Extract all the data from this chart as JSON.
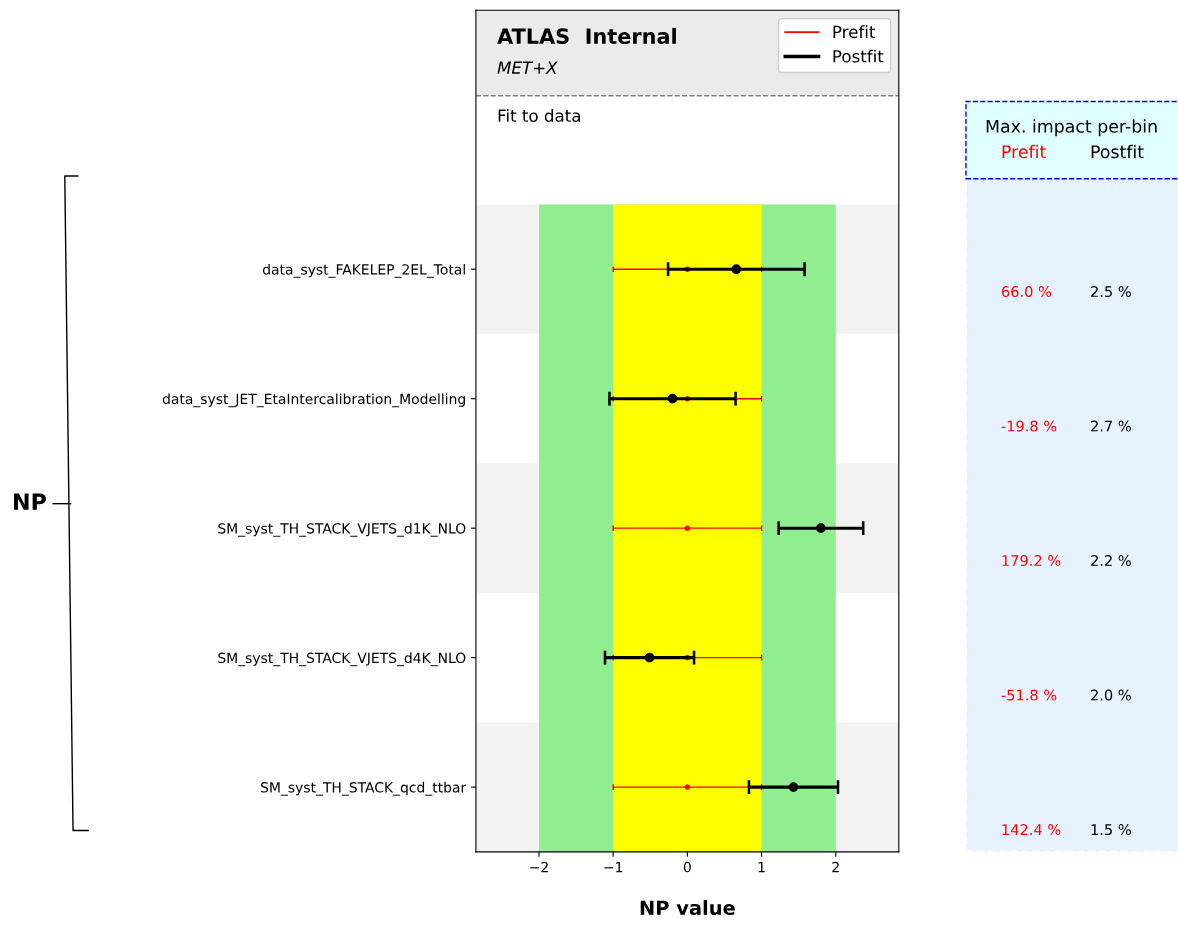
{
  "chart_data": [
    {
      "type": "scatter",
      "orientation": "horizontal",
      "title": "ATLAS  Internal",
      "subtitle": "MET+X",
      "annotations": [
        "Fit to data"
      ],
      "xlabel": "NP value",
      "ylabel": "NP",
      "categories": [
        "data_syst_FAKELEP_2EL_Total",
        "data_syst_JET_EtaIntercalibration_Modelling",
        "SM_syst_TH_STACK_VJETS_d1K_NLO",
        "SM_syst_TH_STACK_VJETS_d4K_NLO",
        "SM_syst_TH_STACK_qcd_ttbar"
      ],
      "xlim": [
        -2.85,
        2.85
      ],
      "xticks": [
        {
          "value": -2,
          "label": "−2"
        },
        {
          "value": -1,
          "label": "−1"
        },
        0,
        1,
        2
      ],
      "bands": [
        {
          "axis": "x",
          "from": -2,
          "to": 2,
          "color": "#90ee90"
        },
        {
          "axis": "x",
          "from": -1,
          "to": 1,
          "color": "#ffff00"
        }
      ],
      "legend": "top right",
      "marker": "circle",
      "series": [
        {
          "name": "Prefit",
          "color": "#ff0000",
          "values": [
            0,
            0,
            0,
            0,
            0
          ],
          "errors": [
            1,
            1,
            1,
            1,
            1
          ]
        },
        {
          "name": "Postfit",
          "color": "#000000",
          "values": [
            0.66,
            -0.2,
            1.8,
            -0.51,
            1.43
          ],
          "errors": [
            0.92,
            0.85,
            0.57,
            0.6,
            0.6
          ]
        }
      ]
    },
    {
      "type": "other",
      "title": "Max. impact per-bin",
      "colors": [
        "#ff0000",
        "#000000"
      ],
      "annotations": [
        "Prefit",
        "Postfit",
        "66.0 %",
        "2.5 %",
        "-19.8 %",
        "2.7 %",
        "179.2 %",
        "2.2 %",
        "-51.8 %",
        "2.0 %",
        "142.4 %",
        "1.5 %"
      ]
    }
  ]
}
